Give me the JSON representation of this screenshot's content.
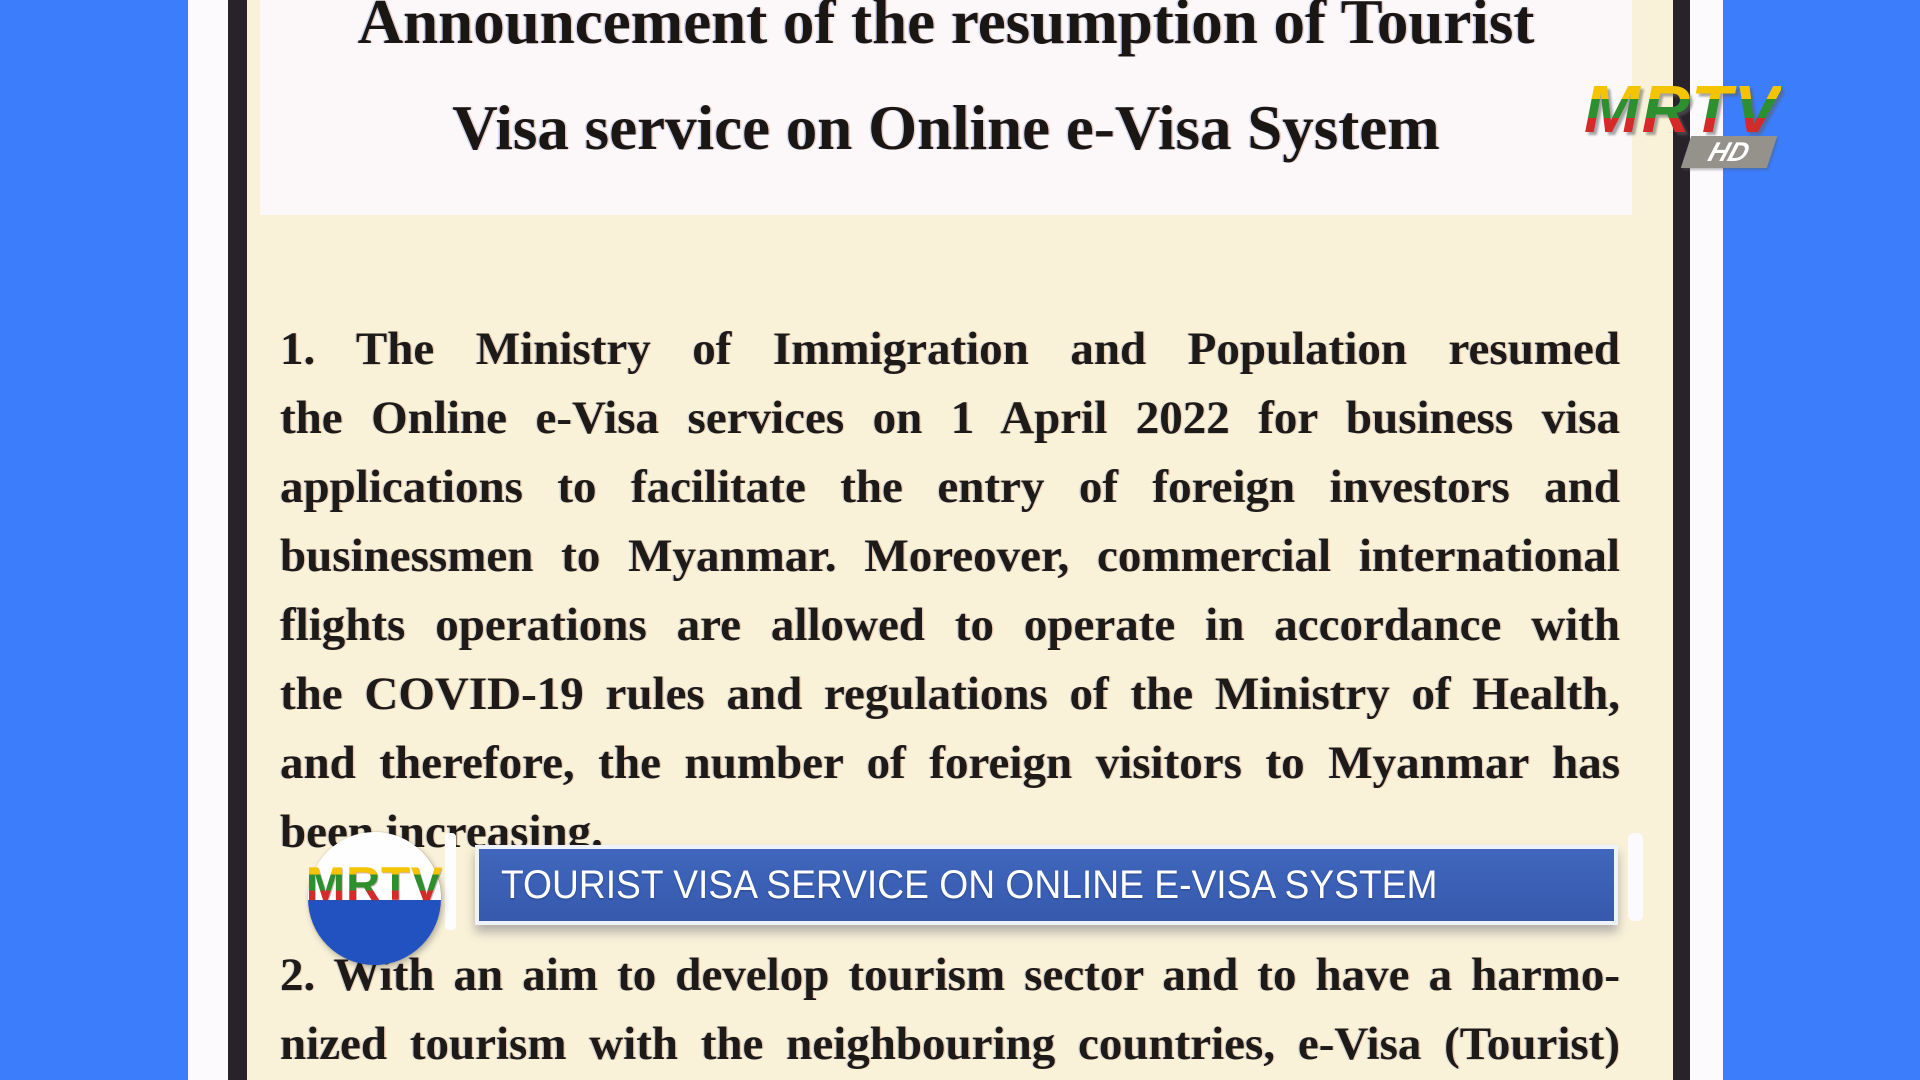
{
  "broadcast": {
    "channel_logo": {
      "text": "MRTV",
      "hd": "HD"
    },
    "lower_third": {
      "logo_text": "MRTV",
      "headline": "TOURIST VISA SERVICE ON ONLINE E-VISA SYSTEM"
    }
  },
  "document": {
    "title_lines": [
      "Announcement of the resumption of Tourist",
      "Visa service on Online e-Visa System"
    ],
    "para1_lines": [
      "1. The Ministry of Immigration and Population resumed",
      "the Online e-Visa services on 1 April 2022 for business visa",
      "applications to facilitate the entry of foreign investors and",
      "businessmen to Myanmar. Moreover, commercial international",
      "flights operations are allowed to operate in accordance with",
      "the COVID-19 rules and regulations of the Ministry of Health,",
      "and therefore, the number of foreign visitors to Myanmar has",
      "been increasing."
    ],
    "para2_lines": [
      "2. With an aim to develop tourism sector and to have a harmo-",
      "nized tourism with the neighbouring countries, e-Visa (Tourist)"
    ]
  },
  "colors": {
    "background_blue": "#3B7DFB",
    "banner_blue": "#3A5FB4",
    "paper_cream": "#FAF2D8",
    "title_block_white": "#FCF8FA",
    "page_border_black": "#29222A",
    "circle_bottom_blue": "#2251C0",
    "stripe_yellow": "#F5C400",
    "stripe_green": "#2E8F2E",
    "stripe_red": "#D42A2A",
    "hd_badge_gray": "#94928A"
  }
}
